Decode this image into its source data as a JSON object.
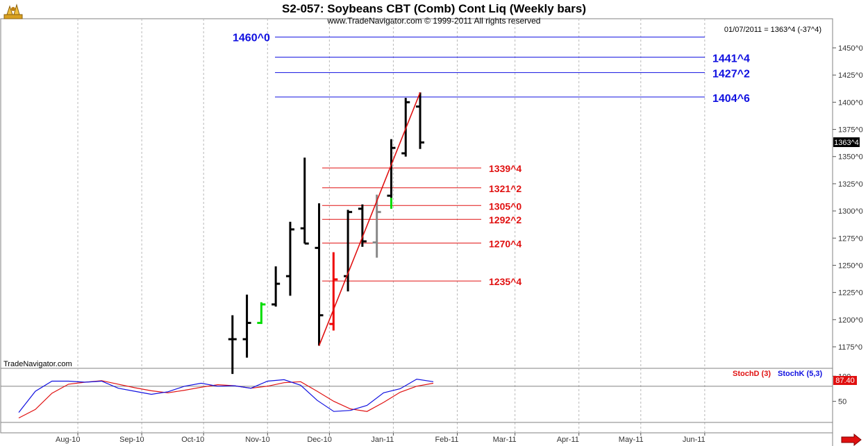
{
  "title": "S2-057:  Soybeans CBT (Comb) Cont Liq  (Weekly bars)",
  "copyright": "www.TradeNavigator.com © 1999-2011 All rights reserved",
  "last_quote": "01/07/2011 = 1363^4 (-37^4)",
  "watermark": "TradeNavigator.com",
  "price_marker": "1363^4",
  "indicator_value_marker": "87.40",
  "icons": [
    "logo-icon",
    "scroll-right-arrow-icon"
  ],
  "colors": {
    "up_bar": "#00dd00",
    "down_bar": "#ee0000",
    "gray_bar": "#888888",
    "bar": "#000000",
    "resistance": "#1010e0",
    "support": "#e01010",
    "trendline": "#e01010",
    "stochD": "#e01010",
    "stochK": "#1010e0"
  },
  "chart_data": {
    "type": "ohlc",
    "x_tick_labels": [
      "Aug-10",
      "Sep-10",
      "Oct-10",
      "Nov-10",
      "Dec-10",
      "Jan-11",
      "Feb-11",
      "Mar-11",
      "Apr-11",
      "May-11",
      "Jun-11"
    ],
    "y_tick_labels": [
      "1175^0",
      "1200^0",
      "1225^0",
      "1250^0",
      "1275^0",
      "1300^0",
      "1325^0",
      "1350^0",
      "1375^0",
      "1400^0",
      "1425^0",
      "1450^0"
    ],
    "y_tick_values": [
      1175,
      1200,
      1225,
      1250,
      1275,
      1300,
      1325,
      1350,
      1375,
      1400,
      1425,
      1450
    ],
    "ylim": [
      1150,
      1475
    ],
    "bars": [
      {
        "week": "2010-10-15",
        "open": 1182,
        "high": 1204,
        "low": 1150,
        "close": 1182,
        "color": "black"
      },
      {
        "week": "2010-10-22",
        "open": 1182,
        "high": 1223,
        "low": 1165,
        "close": 1197,
        "color": "black"
      },
      {
        "week": "2010-10-29",
        "open": 1197,
        "high": 1216,
        "low": 1196,
        "close": 1214,
        "color": "green"
      },
      {
        "week": "2010-11-05",
        "open": 1214,
        "high": 1249,
        "low": 1212,
        "close": 1233,
        "color": "black"
      },
      {
        "week": "2010-11-12",
        "open": 1240,
        "high": 1290,
        "low": 1222,
        "close": 1283,
        "color": "black"
      },
      {
        "week": "2010-11-19",
        "open": 1284,
        "high": 1349,
        "low": 1270,
        "close": 1270,
        "color": "black"
      },
      {
        "week": "2010-11-26",
        "open": 1266,
        "high": 1307,
        "low": 1176,
        "close": 1204,
        "color": "black"
      },
      {
        "week": "2010-12-03",
        "open": 1196,
        "high": 1262,
        "low": 1190,
        "close": 1237,
        "color": "red"
      },
      {
        "week": "2010-12-10",
        "open": 1240,
        "high": 1301,
        "low": 1226,
        "close": 1299,
        "color": "black"
      },
      {
        "week": "2010-12-17",
        "open": 1302,
        "high": 1306,
        "low": 1267,
        "close": 1272,
        "color": "black"
      },
      {
        "week": "2010-12-24",
        "open": 1271,
        "high": 1315,
        "low": 1257,
        "close": 1299,
        "color": "gray"
      },
      {
        "week": "2010-12-31",
        "open": 1314,
        "high": 1366,
        "low": 1302,
        "close": 1358,
        "color": "black/green"
      },
      {
        "week": "2011-01-07",
        "open": 1353,
        "high": 1404,
        "low": 1350,
        "close": 1400,
        "color": "black"
      },
      {
        "week": "2011-01-14",
        "open": 1396,
        "high": 1409,
        "low": 1357,
        "close": 1363,
        "color": "black"
      }
    ],
    "trendline": {
      "from": {
        "week": "2010-11-26",
        "price": 1176
      },
      "to": {
        "week": "2011-01-14",
        "price": 1409
      }
    },
    "resistance_levels": [
      {
        "label": "1460^0",
        "value": 1460
      },
      {
        "label": "1441^4",
        "value": 1441.5
      },
      {
        "label": "1427^2",
        "value": 1427.25
      },
      {
        "label": "1404^6",
        "value": 1404.75
      }
    ],
    "support_levels": [
      {
        "label": "1339^4",
        "value": 1339.5
      },
      {
        "label": "1321^2",
        "value": 1321.25
      },
      {
        "label": "1305^0",
        "value": 1305
      },
      {
        "label": "1292^2",
        "value": 1292.25
      },
      {
        "label": "1270^4",
        "value": 1270.5
      },
      {
        "label": "1235^4",
        "value": 1235.5
      }
    ],
    "indicator": {
      "ylim": [
        0,
        110
      ],
      "y_tick_labels": [
        "100",
        "50"
      ],
      "y_tick_values": [
        100,
        50
      ],
      "legend": [
        {
          "name": "StochD (3)",
          "color": "#e01010"
        },
        {
          "name": "StochK (5,3)",
          "color": "#1010e0"
        }
      ],
      "reference_line": 80,
      "stochD": [
        17,
        34,
        66,
        84,
        88,
        91,
        84,
        77,
        71,
        67,
        72,
        78,
        83,
        81,
        76,
        80,
        87,
        89,
        70,
        50,
        35,
        30,
        48,
        68,
        80,
        86
      ],
      "stochK": [
        28,
        70,
        90,
        90,
        88,
        90,
        76,
        70,
        64,
        69,
        80,
        86,
        80,
        81,
        76,
        90,
        93,
        82,
        52,
        30,
        32,
        42,
        67,
        75,
        94,
        89
      ]
    }
  }
}
